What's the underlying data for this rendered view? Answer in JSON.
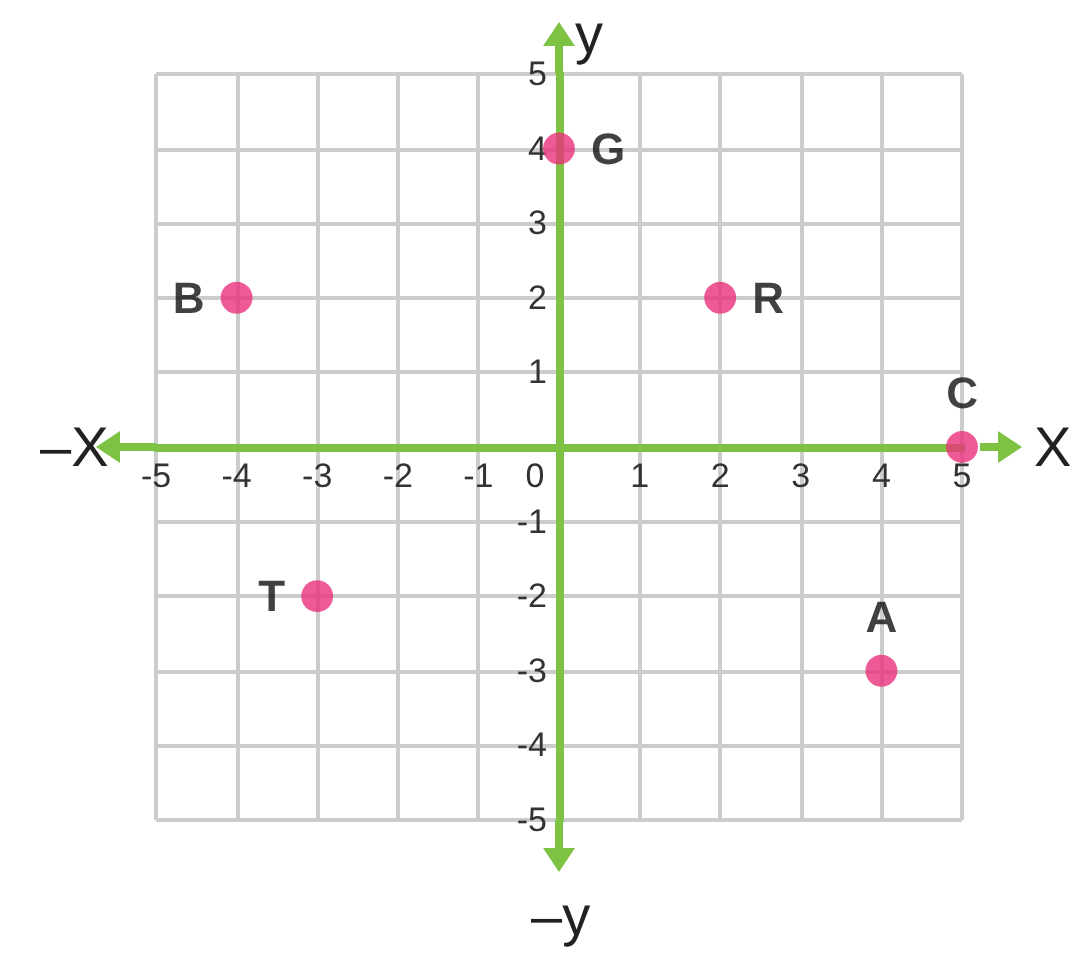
{
  "chart_data": {
    "type": "scatter",
    "xlabel": "X",
    "ylabel": "y",
    "x": [
      -4,
      0,
      2,
      5,
      -3,
      4
    ],
    "values": [
      2,
      4,
      2,
      0,
      -2,
      -3
    ],
    "color": "#e8317a",
    "marker": "circle",
    "xlim": [
      -5,
      5
    ],
    "ylim": [
      -5,
      5
    ],
    "xticks": [
      -5,
      -4,
      -3,
      -2,
      -1,
      0,
      1,
      2,
      3,
      4,
      5
    ],
    "yticks": [
      -5,
      -4,
      -3,
      -2,
      -1,
      1,
      2,
      3,
      4,
      5
    ],
    "grid": true,
    "annotations": [
      {
        "text": "B",
        "x": -4,
        "y": 2
      },
      {
        "text": "G",
        "x": 0,
        "y": 4
      },
      {
        "text": "R",
        "x": 2,
        "y": 2
      },
      {
        "text": "C",
        "x": 5,
        "y": 0
      },
      {
        "text": "T",
        "x": -3,
        "y": -2
      },
      {
        "text": "A",
        "x": 4,
        "y": -3
      },
      "–X",
      "–y"
    ]
  }
}
